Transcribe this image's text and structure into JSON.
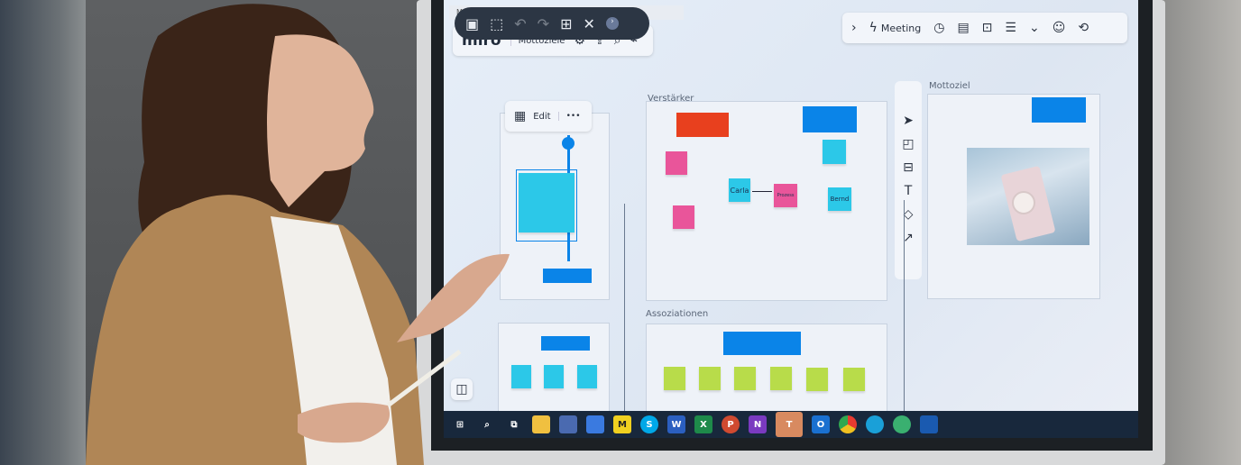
{
  "window": {
    "tab_title": "Miro"
  },
  "board": {
    "logo": "miro",
    "name": "Mottoziele"
  },
  "top_right": {
    "meeting_label": "Meeting"
  },
  "context_menu": {
    "edit_label": "Edit",
    "more_label": "•••"
  },
  "frames": {
    "verstaerker": {
      "title": "Verstärker",
      "stickies": [
        "Carla",
        "Prozess",
        "Bernd"
      ]
    },
    "mottoziel": {
      "title": "Mottoziel"
    },
    "assoziationen": {
      "title": "Assoziationen"
    }
  },
  "colors": {
    "accent": "#0a84e8",
    "pink": "#e9559a",
    "cyan": "#2cc8e8",
    "lime": "#b8dc4a",
    "red": "#e8401e"
  }
}
